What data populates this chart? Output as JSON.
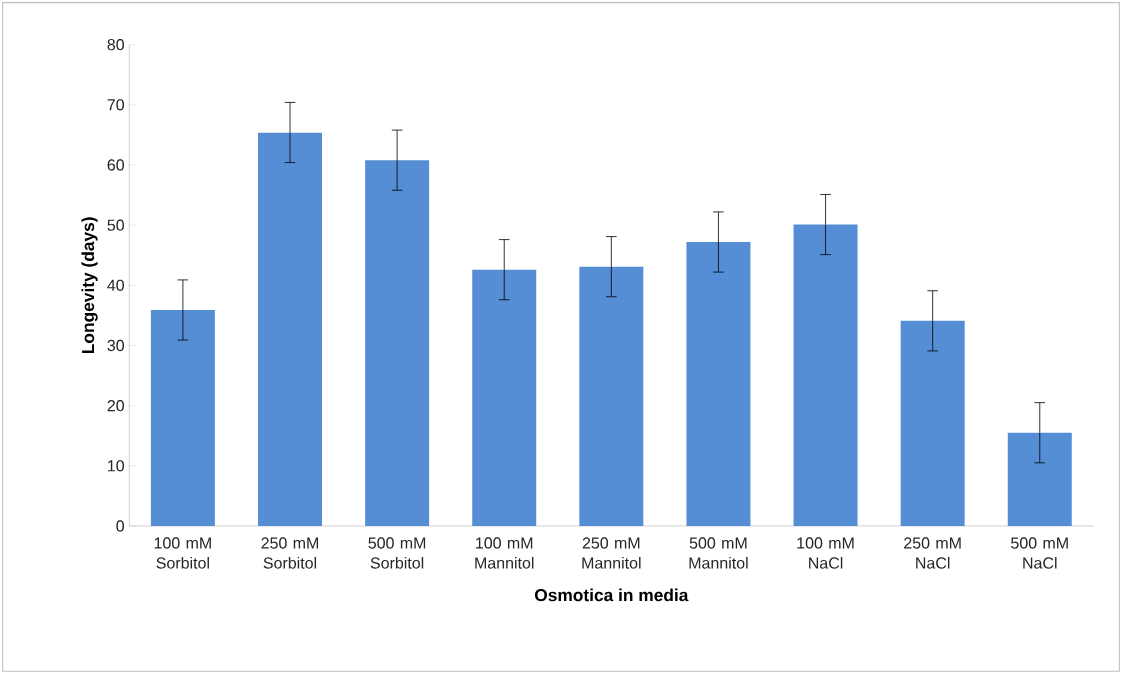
{
  "chart_data": {
    "type": "bar",
    "xlabel": "Osmotica in media",
    "ylabel": "Longevity (days)",
    "categories": [
      "100 mM Sorbitol",
      "250 mM Sorbitol",
      "500 mM Sorbitol",
      "100 mM Mannitol",
      "250 mM Mannitol",
      "500 mM Mannitol",
      "100 mM NaCl",
      "250 mM NaCl",
      "500 mM NaCl"
    ],
    "values": [
      35.9,
      65.4,
      60.8,
      42.6,
      43.1,
      47.2,
      50.1,
      34.1,
      15.5
    ],
    "errors": [
      5,
      5,
      5,
      5,
      5,
      5,
      5,
      5,
      5
    ],
    "color": "#558ed5",
    "ylim": [
      0,
      80
    ],
    "yticks": [
      0,
      10,
      20,
      30,
      40,
      50,
      60,
      70,
      80
    ],
    "grid": false
  }
}
